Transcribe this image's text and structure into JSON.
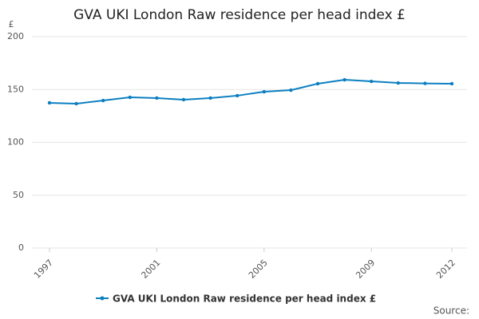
{
  "chart_data": {
    "type": "line",
    "title": "GVA UKI London Raw residence per head index £",
    "y_label": "£",
    "source": "Source:",
    "x": [
      1997,
      1998,
      1999,
      2000,
      2001,
      2002,
      2003,
      2004,
      2005,
      2006,
      2007,
      2008,
      2009,
      2010,
      2011,
      2012
    ],
    "series": [
      {
        "name": "GVA UKI London Raw residence per head index £",
        "color": "#0b7fc1",
        "values": [
          137.4,
          136.6,
          139.6,
          142.6,
          141.9,
          140.4,
          141.9,
          144.2,
          147.9,
          149.4,
          155.5,
          159.2,
          157.7,
          156.2,
          155.8,
          155.5
        ]
      }
    ],
    "xlim": [
      1997,
      2012
    ],
    "xticks": [
      1997,
      2001,
      2005,
      2009,
      2012
    ],
    "ylim": [
      0,
      200
    ],
    "yticks": [
      0,
      50,
      100,
      150,
      200
    ],
    "grid": true,
    "legend": "bottom"
  }
}
